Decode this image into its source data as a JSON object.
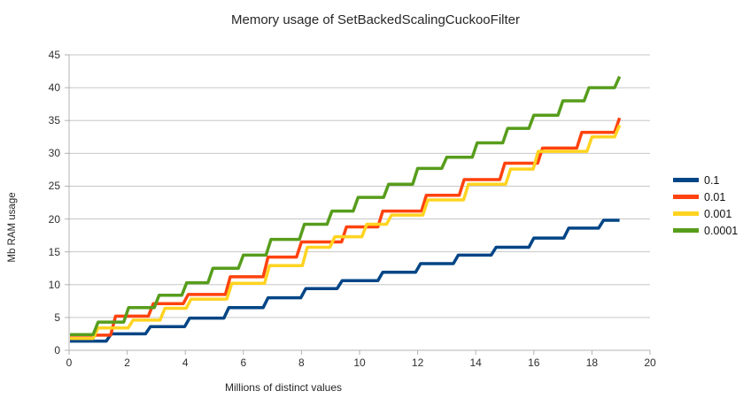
{
  "chart_data": {
    "type": "line",
    "title": "Memory usage of SetBackedScalingCuckooFilter",
    "xlabel": "Millions of distinct values",
    "ylabel": "Mb RAM usage",
    "xlim": [
      0,
      20
    ],
    "ylim": [
      0,
      45
    ],
    "x_ticks": [
      0,
      2,
      4,
      6,
      8,
      10,
      12,
      14,
      16,
      18,
      20
    ],
    "y_ticks": [
      0,
      5,
      10,
      15,
      20,
      25,
      30,
      35,
      40,
      45
    ],
    "grid": "horizontal-only",
    "legend_position": "right-middle",
    "line_style": "staircase",
    "x_data_end": 18.95,
    "grid_color": "#c7c7c7",
    "axis_color": "#b3b3b3",
    "text_color": "#262626",
    "series": [
      {
        "name": "0.1",
        "color": "#004586",
        "steps": [
          [
            0,
            1.4
          ],
          [
            1.35,
            2.5
          ],
          [
            2.7,
            3.6
          ],
          [
            4.05,
            4.9
          ],
          [
            5.4,
            6.5
          ],
          [
            6.75,
            8.0
          ],
          [
            8.05,
            9.4
          ],
          [
            9.3,
            10.6
          ],
          [
            10.7,
            11.9
          ],
          [
            12.0,
            13.2
          ],
          [
            13.3,
            14.5
          ],
          [
            14.6,
            15.7
          ],
          [
            15.9,
            17.1
          ],
          [
            17.1,
            18.6
          ],
          [
            18.3,
            19.8
          ]
        ]
      },
      {
        "name": "0.01",
        "color": "#FF420E",
        "steps": [
          [
            0,
            2.3
          ],
          [
            1.5,
            5.2
          ],
          [
            2.8,
            7.1
          ],
          [
            4.0,
            8.5
          ],
          [
            5.45,
            11.2
          ],
          [
            6.75,
            14.2
          ],
          [
            7.9,
            16.5
          ],
          [
            9.45,
            18.8
          ],
          [
            10.7,
            21.2
          ],
          [
            12.2,
            23.6
          ],
          [
            13.5,
            26.0
          ],
          [
            14.9,
            28.5
          ],
          [
            16.2,
            30.8
          ],
          [
            17.55,
            33.2
          ],
          [
            18.85,
            35.4
          ]
        ]
      },
      {
        "name": "0.001",
        "color": "#FFD320",
        "steps": [
          [
            0,
            1.8
          ],
          [
            0.9,
            3.4
          ],
          [
            2.1,
            4.6
          ],
          [
            3.2,
            6.4
          ],
          [
            4.1,
            7.8
          ],
          [
            5.5,
            10.2
          ],
          [
            6.8,
            12.9
          ],
          [
            8.1,
            15.7
          ],
          [
            9.05,
            17.3
          ],
          [
            10.15,
            19.2
          ],
          [
            11.0,
            20.6
          ],
          [
            12.25,
            22.9
          ],
          [
            13.65,
            25.3
          ],
          [
            15.1,
            27.6
          ],
          [
            16.05,
            30.3
          ],
          [
            17.9,
            32.5
          ],
          [
            18.85,
            34.3
          ]
        ]
      },
      {
        "name": "0.0001",
        "color": "#579D1C",
        "steps": [
          [
            0,
            2.4
          ],
          [
            0.9,
            4.3
          ],
          [
            1.95,
            6.5
          ],
          [
            3.0,
            8.4
          ],
          [
            3.95,
            10.3
          ],
          [
            4.85,
            12.5
          ],
          [
            5.9,
            14.5
          ],
          [
            6.85,
            16.9
          ],
          [
            8.0,
            19.2
          ],
          [
            8.95,
            21.2
          ],
          [
            9.85,
            23.3
          ],
          [
            10.9,
            25.3
          ],
          [
            11.9,
            27.7
          ],
          [
            12.9,
            29.4
          ],
          [
            13.95,
            31.6
          ],
          [
            15.0,
            33.8
          ],
          [
            15.9,
            35.8
          ],
          [
            16.9,
            38.0
          ],
          [
            17.8,
            40.0
          ],
          [
            18.85,
            41.7
          ]
        ]
      }
    ]
  }
}
